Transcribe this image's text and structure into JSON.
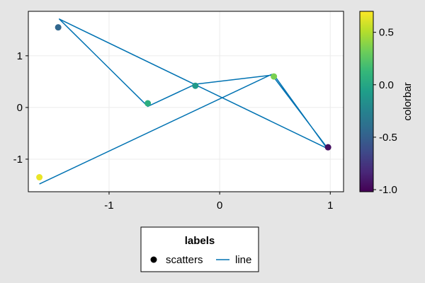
{
  "chart_data": {
    "type": "scatter",
    "xlabel": "",
    "ylabel": "",
    "xlim": [
      -1.73,
      1.12
    ],
    "ylim": [
      -1.63,
      1.86
    ],
    "xticks": [
      -1,
      0,
      1
    ],
    "xtick_labels": [
      "-1",
      "0",
      "1"
    ],
    "yticks": [
      -1,
      0,
      1
    ],
    "ytick_labels": [
      "-1",
      "0",
      "1"
    ],
    "grid": true,
    "series": [
      {
        "name": "scatters",
        "kind": "scatter",
        "x": [
          -1.63,
          -1.46,
          -0.65,
          -0.22,
          0.49,
          0.98
        ],
        "y": [
          -1.35,
          1.55,
          0.08,
          0.42,
          0.6,
          -0.77
        ],
        "color_values": [
          0.65,
          -0.45,
          0.05,
          -0.1,
          0.35,
          -0.95
        ]
      },
      {
        "name": "line",
        "kind": "line",
        "color": "#0072b2",
        "x": [
          -1.63,
          0.47,
          0.98,
          -1.45,
          -0.65,
          -0.22,
          0.49,
          0.98
        ],
        "y": [
          -1.48,
          0.64,
          -0.8,
          1.71,
          0.02,
          0.45,
          0.63,
          -0.82
        ]
      }
    ],
    "colorbar": {
      "label": "colorbar",
      "colormap": "viridis",
      "range": [
        -1.02,
        0.7
      ],
      "ticks": [
        -1.0,
        -0.5,
        0.0,
        0.5
      ],
      "tick_labels": [
        "-1.0",
        "-0.5",
        "0.0",
        "0.5"
      ]
    },
    "legend": {
      "title": "labels",
      "placement": "bottom-center",
      "entries": [
        {
          "label": "scatters",
          "marker": "circle",
          "color": "#000000"
        },
        {
          "label": "line",
          "marker": "line",
          "color": "#0072b2"
        }
      ]
    }
  }
}
